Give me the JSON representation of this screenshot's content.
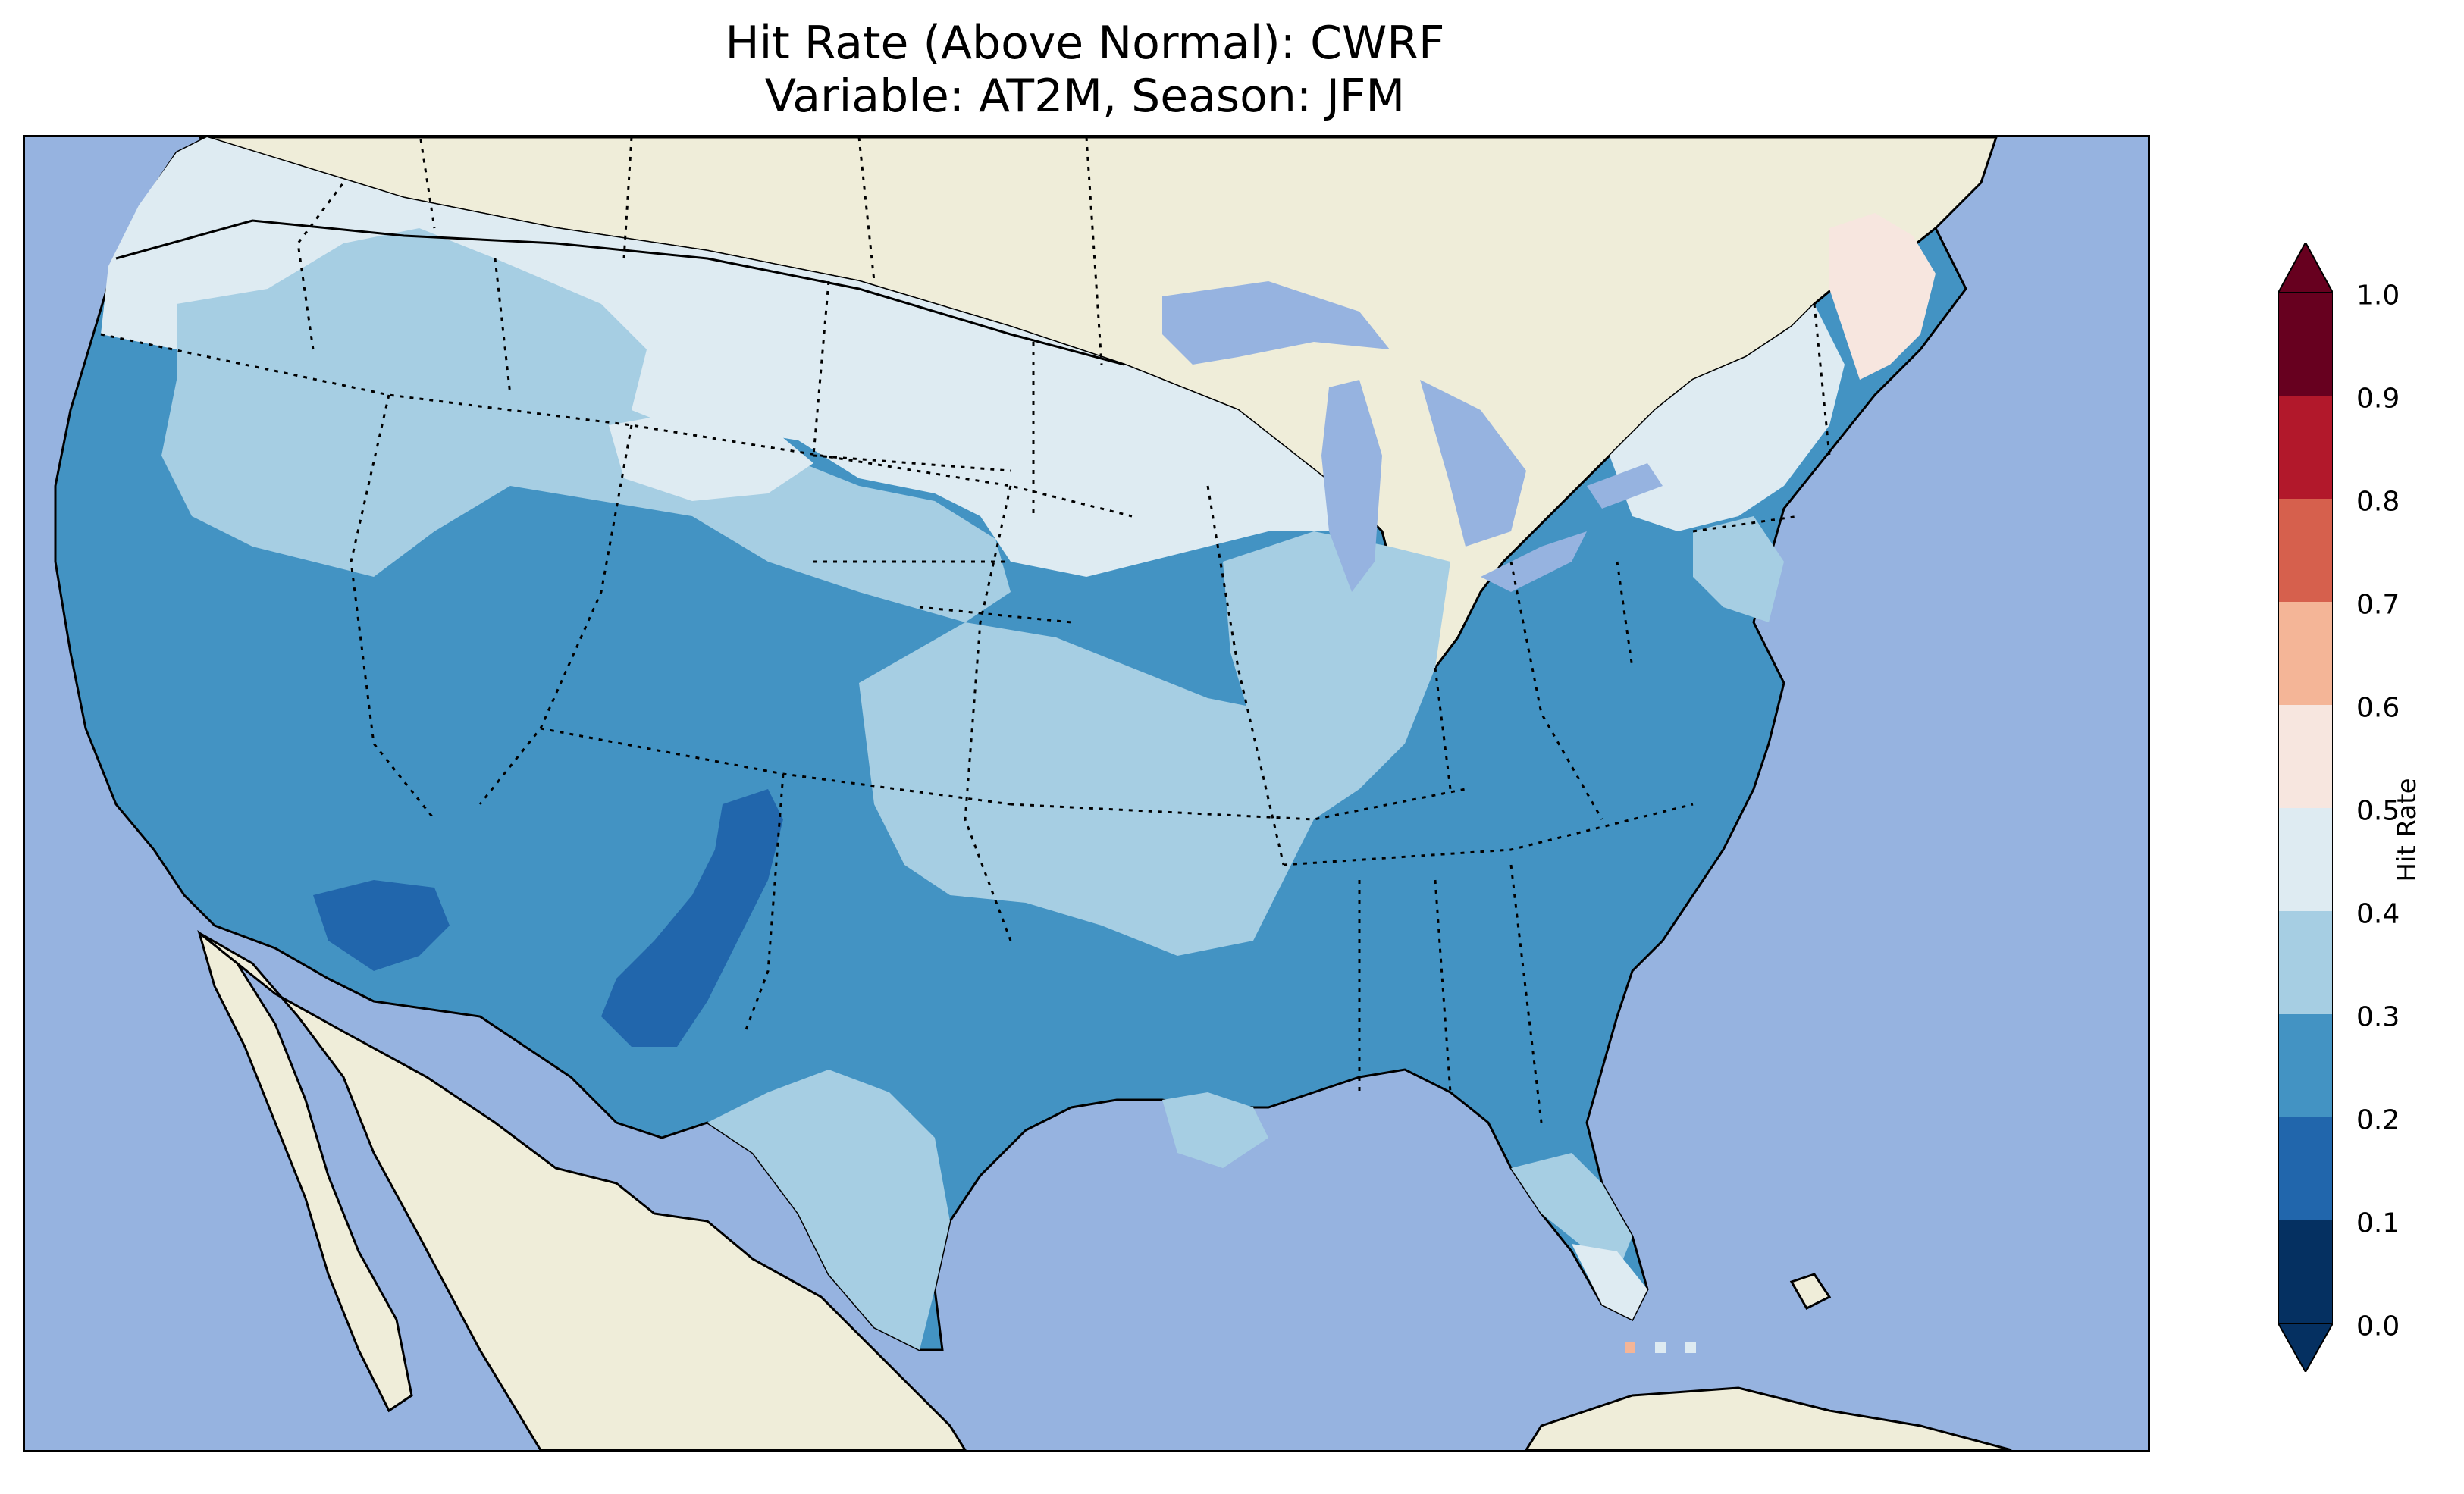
{
  "title": {
    "line1": "Hit Rate (Above Normal): CWRF",
    "line2": "Variable: AT2M, Season: JFM"
  },
  "colors": {
    "ocean": "#96b3e0",
    "land_outside": "#efedd9",
    "hr_0_1": "#053061",
    "hr_1_2": "#2166ac",
    "hr_2_3": "#4393c3",
    "hr_3_4": "#a6cee3",
    "hr_4_5": "#deebf2",
    "hr_5_6": "#f7e6df",
    "hr_6_7": "#f4b597",
    "hr_7_8": "#d6604d",
    "hr_8_9": "#b2182b",
    "hr_9_10": "#67001f"
  },
  "colorbar": {
    "label": "Hit Rate",
    "ticks": [
      "0.0",
      "0.1",
      "0.2",
      "0.3",
      "0.4",
      "0.5",
      "0.6",
      "0.7",
      "0.8",
      "0.9",
      "1.0"
    ],
    "extend": "both"
  },
  "map_regions": {
    "northwest_interior_west": "0.4-0.5",
    "great_basin": "0.3-0.4",
    "southwest_desert": "0.2-0.3",
    "four_corners_core": "0.1-0.2",
    "upper_midwest": "0.4-0.5",
    "central_plains": "0.3-0.4",
    "southeast": "0.2-0.3",
    "new_england_north": "0.5-0.6",
    "south_florida": "0.4-0.5"
  }
}
